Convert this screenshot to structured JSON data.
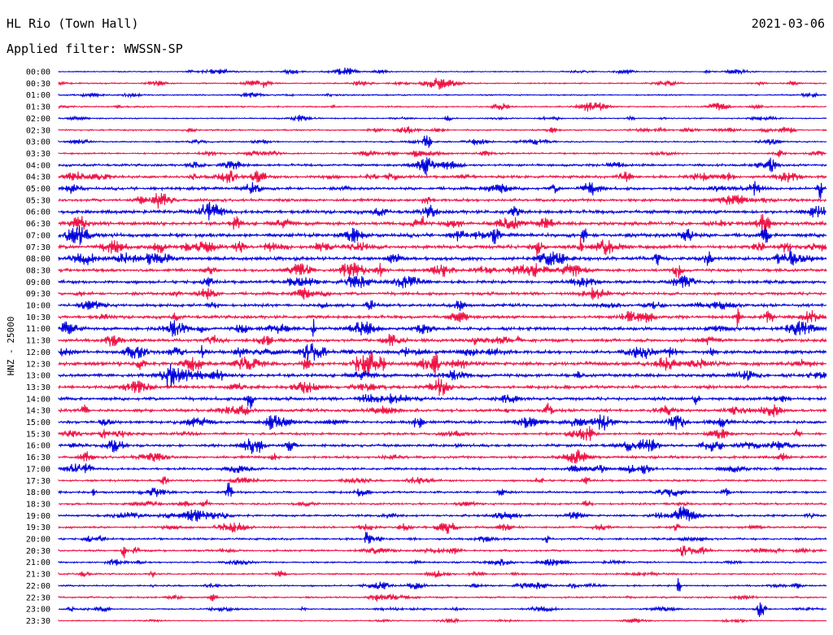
{
  "header": {
    "station": "HL Rio (Town Hall)",
    "date": "2021-03-06",
    "filter": "Applied filter: WWSSN-SP"
  },
  "chart_data": {
    "type": "line",
    "ylabel": "HNZ - 25000",
    "xlabel": "",
    "title": "HL Rio (Town Hall)",
    "series_colors": [
      "#0000dd",
      "#ee1144"
    ],
    "grid": false,
    "rows": [
      "00:00",
      "00:30",
      "01:00",
      "01:30",
      "02:00",
      "02:30",
      "03:00",
      "03:30",
      "04:00",
      "04:30",
      "05:00",
      "05:30",
      "06:00",
      "06:30",
      "07:00",
      "07:30",
      "08:00",
      "08:30",
      "09:00",
      "09:30",
      "10:00",
      "10:30",
      "11:00",
      "11:30",
      "12:00",
      "12:30",
      "13:00",
      "13:30",
      "14:00",
      "14:30",
      "15:00",
      "15:30",
      "16:00",
      "16:30",
      "17:00",
      "17:30",
      "18:00",
      "18:30",
      "19:00",
      "19:30",
      "20:00",
      "20:30",
      "21:00",
      "21:30",
      "22:00",
      "22:30",
      "23:00",
      "23:30"
    ],
    "noise_level": [
      0.6,
      0.7,
      0.7,
      0.8,
      0.7,
      0.8,
      0.8,
      0.9,
      1.3,
      1.5,
      1.6,
      1.6,
      1.9,
      2.0,
      2.1,
      2.0,
      1.9,
      1.7,
      1.7,
      1.6,
      1.6,
      1.7,
      1.8,
      1.7,
      1.9,
      2.0,
      1.9,
      1.8,
      1.7,
      1.6,
      1.6,
      1.3,
      1.5,
      1.4,
      1.3,
      1.1,
      1.2,
      1.1,
      1.2,
      1.1,
      1.1,
      1.1,
      0.9,
      0.9,
      0.9,
      0.9,
      0.7,
      0.6
    ]
  }
}
